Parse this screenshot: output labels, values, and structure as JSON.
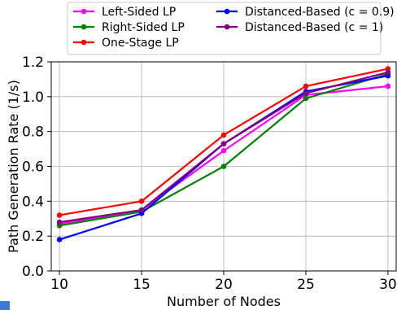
{
  "chart_data": {
    "type": "line",
    "title": "",
    "xlabel": "Number of Nodes",
    "ylabel": "Path Generation Rate (1/s)",
    "x": [
      10,
      15,
      20,
      25,
      30
    ],
    "xlim": [
      9.5,
      30.5
    ],
    "ylim": [
      0.0,
      1.2
    ],
    "xticks": [
      "10",
      "15",
      "20",
      "25",
      "30"
    ],
    "yticks": [
      "0.0",
      "0.2",
      "0.4",
      "0.6",
      "0.8",
      "1.0",
      "1.2"
    ],
    "grid": true,
    "legend_position": "top",
    "series": [
      {
        "name": "Left-Sided LP",
        "color": "#ff00ff",
        "values": [
          0.27,
          0.35,
          0.69,
          1.01,
          1.06
        ]
      },
      {
        "name": "Right-Sided LP",
        "color": "#008000",
        "values": [
          0.26,
          0.34,
          0.6,
          0.99,
          1.13
        ]
      },
      {
        "name": "One-Stage LP",
        "color": "#ff0000",
        "values": [
          0.32,
          0.4,
          0.78,
          1.06,
          1.16
        ]
      },
      {
        "name": "Distanced-Based (c = 0.9)",
        "color": "#0000ff",
        "values": [
          0.18,
          0.33,
          0.73,
          1.03,
          1.12
        ]
      },
      {
        "name": "Distanced-Based (c = 1)",
        "color": "#800080",
        "values": [
          0.28,
          0.35,
          0.73,
          1.02,
          1.14
        ]
      }
    ]
  }
}
